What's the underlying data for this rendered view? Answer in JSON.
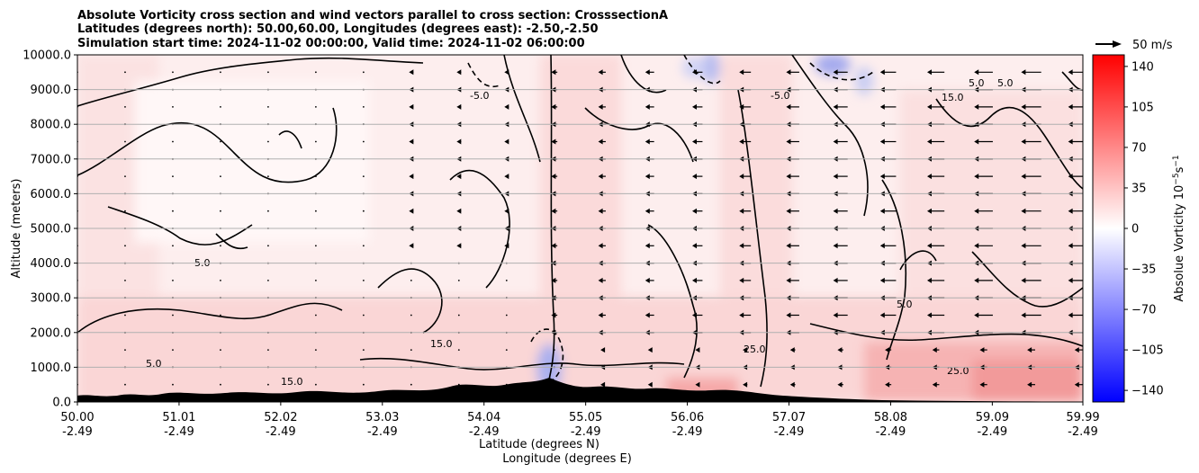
{
  "chart_data": {
    "type": "heatmap",
    "title_lines": [
      "Absolute Vorticity cross section and wind vectors parallel to cross section: CrosssectionA",
      "Latitudes (degrees north): 50.00,60.00, Longitudes (degrees east): -2.50,-2.50",
      "Simulation start time: 2024-11-02 00:00:00, Valid time: 2024-11-02 06:00:00"
    ],
    "ylabel": "Altitude (meters)",
    "xlabel_lines": [
      "Latitude (degrees N)",
      "Longitude (degrees E)"
    ],
    "x_ticks": [
      {
        "lat": "50.00",
        "lon": "-2.49"
      },
      {
        "lat": "51.01",
        "lon": "-2.49"
      },
      {
        "lat": "52.02",
        "lon": "-2.49"
      },
      {
        "lat": "53.03",
        "lon": "-2.49"
      },
      {
        "lat": "54.04",
        "lon": "-2.49"
      },
      {
        "lat": "55.05",
        "lon": "-2.49"
      },
      {
        "lat": "56.06",
        "lon": "-2.49"
      },
      {
        "lat": "57.07",
        "lon": "-2.49"
      },
      {
        "lat": "58.08",
        "lon": "-2.49"
      },
      {
        "lat": "59.09",
        "lon": "-2.49"
      },
      {
        "lat": "59.99",
        "lon": "-2.49"
      }
    ],
    "xlim": [
      50.0,
      59.99
    ],
    "y_ticks": [
      "0.0",
      "1000.0",
      "2000.0",
      "3000.0",
      "4000.0",
      "5000.0",
      "6000.0",
      "7000.0",
      "8000.0",
      "9000.0",
      "10000.0"
    ],
    "ylim": [
      0,
      10000
    ],
    "grid": "horizontal",
    "colorbar": {
      "label": "Absolue Vorticity 10",
      "label_units": "−5",
      "label_tail": "s",
      "label_tail_units": "−1",
      "ticks": [
        "140",
        "105",
        "70",
        "35",
        "0",
        "−35",
        "−70",
        "−105",
        "−140"
      ],
      "range": [
        -150,
        150
      ],
      "colormap": "bwr",
      "color_min": "#0000ff",
      "color_mid": "#ffffff",
      "color_max": "#ff0000"
    },
    "quiver_key": {
      "label": "50 m/s"
    },
    "contour_labels": [
      "5.0",
      "15.0",
      "25.0",
      "-5.0"
    ],
    "features": {
      "strong_positive_near_surface_lat": [
        57.0,
        59.99
      ],
      "negative_cores": [
        {
          "lat": 55.0,
          "alt": 800,
          "value": -40
        },
        {
          "lat": 56.3,
          "alt": 9600,
          "value": -25
        },
        {
          "lat": 57.5,
          "alt": 9700,
          "value": -45
        }
      ],
      "terrain": "surface orography shown in black below ~200 m"
    },
    "wind_vectors": {
      "direction": "southward (toward lower latitude) aloft north of 54.5N",
      "columns_lat_start": 50.0,
      "columns_lat_end": 59.95
    }
  }
}
